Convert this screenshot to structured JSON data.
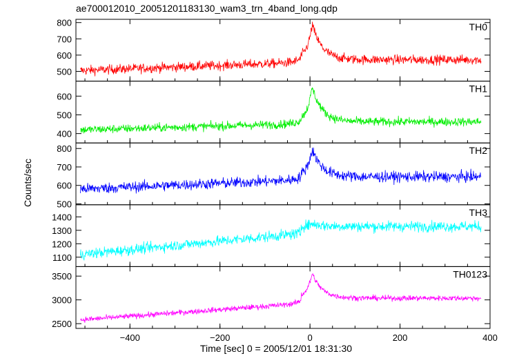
{
  "title": "ae700012010_20051201183130_wam3_trn_4band_long.qdp",
  "ylabel": "Counts/sec",
  "xlabel": "Time [sec] 0 = 2005/12/01 18:31:30",
  "chart_data": {
    "type": "line",
    "title": "ae700012010_20051201183130_wam3_trn_4band_long.qdp",
    "xlabel": "Time [sec] 0 = 2005/12/01 18:31:30",
    "ylabel": "Counts/sec",
    "xlim": [
      -520,
      400
    ],
    "xticks": [
      -400,
      -200,
      0,
      200,
      400
    ],
    "grid": false,
    "panels": [
      {
        "name": "TH0",
        "color": "#ff0000",
        "ylim": [
          440,
          820
        ],
        "yticks": [
          500,
          600,
          700,
          800
        ],
        "base_start": 505,
        "base_end": 575,
        "peak_value": 790,
        "noise": 28
      },
      {
        "name": "TH1",
        "color": "#00ee00",
        "ylim": [
          350,
          680
        ],
        "yticks": [
          400,
          500,
          600
        ],
        "base_start": 420,
        "base_end": 465,
        "peak_value": 650,
        "noise": 22
      },
      {
        "name": "TH2",
        "color": "#0000ff",
        "ylim": [
          495,
          830
        ],
        "yticks": [
          500,
          600,
          700,
          800
        ],
        "base_start": 580,
        "base_end": 650,
        "peak_value": 800,
        "noise": 28
      },
      {
        "name": "TH3",
        "color": "#00ffff",
        "ylim": [
          1030,
          1490
        ],
        "yticks": [
          1100,
          1200,
          1300,
          1400
        ],
        "base_start": 1120,
        "base_end": 1340,
        "peak_value": 1360,
        "noise": 38
      },
      {
        "name": "TH0123",
        "color": "#ff00ff",
        "ylim": [
          2400,
          3700
        ],
        "yticks": [
          2500,
          3000,
          3500
        ],
        "base_start": 2580,
        "base_end": 3060,
        "peak_value": 3580,
        "noise": 55
      }
    ],
    "peak_time": 5,
    "x_start": -510,
    "x_end": 380
  }
}
